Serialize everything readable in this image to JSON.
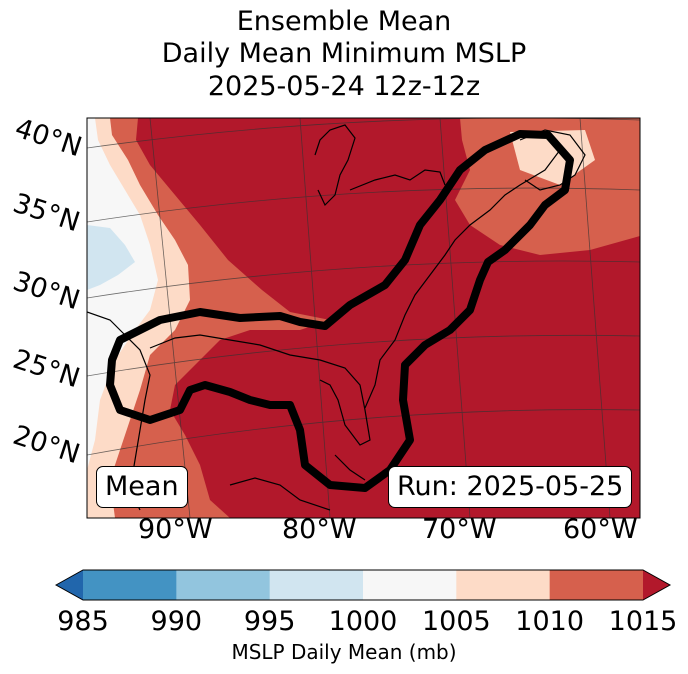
{
  "title": {
    "line1": "Ensemble Mean",
    "line2": "Daily Mean Minimum MSLP",
    "line3": "2025-05-24 12z-12z"
  },
  "map": {
    "lat_labels": [
      "40°N",
      "35°N",
      "30°N",
      "25°N",
      "20°N"
    ],
    "lon_labels": [
      "90°W",
      "80°W",
      "70°W",
      "60°W"
    ],
    "stat_label": "Mean",
    "run_label": "Run: 2025-05-25",
    "contour_color": "#000000"
  },
  "colorbar": {
    "ticks": [
      "985",
      "990",
      "995",
      "1000",
      "1005",
      "1010",
      "1015"
    ],
    "label": "MSLP Daily Mean (mb)",
    "colors": [
      "#2166ac",
      "#4393c3",
      "#92c5de",
      "#d1e5f0",
      "#f7f7f7",
      "#fddbc7",
      "#d6604d",
      "#b2182b"
    ]
  }
}
